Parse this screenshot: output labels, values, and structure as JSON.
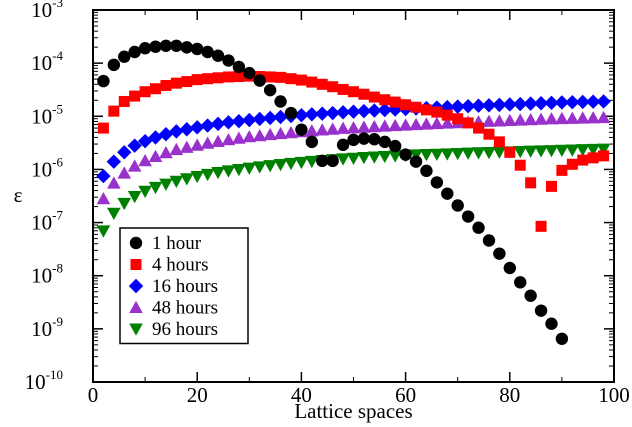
{
  "chart_data": {
    "type": "scatter",
    "xlabel": "Lattice spaces",
    "ylabel": "ε",
    "xlim": [
      0,
      100
    ],
    "ylim_log10": [
      -10,
      -3
    ],
    "y_scale": "log",
    "grid": false,
    "legend_placement": "bottom-left",
    "x_ticks": [
      0,
      20,
      40,
      60,
      80,
      100
    ],
    "x_tick_labels": [
      "0",
      "20",
      "40",
      "60",
      "80",
      "100"
    ],
    "y_ticks": [
      {
        "base": "10",
        "exp": "-10",
        "value_log10": -10
      },
      {
        "base": "10",
        "exp": "-9",
        "value_log10": -9
      },
      {
        "base": "10",
        "exp": "-8",
        "value_log10": -8
      },
      {
        "base": "10",
        "exp": "-7",
        "value_log10": -7
      },
      {
        "base": "10",
        "exp": "-6",
        "value_log10": -6
      },
      {
        "base": "10",
        "exp": "-5",
        "value_log10": -5
      },
      {
        "base": "10",
        "exp": "-4",
        "value_log10": -4
      },
      {
        "base": "10",
        "exp": "-3",
        "value_log10": -3
      }
    ],
    "series": [
      {
        "name": "1 hour",
        "marker": "circle",
        "color": "#000000",
        "points": [
          [
            2,
            4.6e-05
          ],
          [
            4,
            9.3e-05
          ],
          [
            6,
            0.000132
          ],
          [
            8,
            0.000162
          ],
          [
            10,
            0.000191
          ],
          [
            12,
            0.000204
          ],
          [
            14,
            0.000212
          ],
          [
            16,
            0.000212
          ],
          [
            18,
            0.000198
          ],
          [
            20,
            0.000185
          ],
          [
            22,
            0.000162
          ],
          [
            24,
            0.000138
          ],
          [
            26,
            0.000112
          ],
          [
            28,
            8.5e-05
          ],
          [
            30,
            6.5e-05
          ],
          [
            32,
            4.7e-05
          ],
          [
            34,
            3.1e-05
          ],
          [
            36,
            1.9e-05
          ],
          [
            38,
            1.15e-05
          ],
          [
            40,
            5.6e-06
          ],
          [
            42,
            3.3e-06
          ],
          [
            44,
            1.45e-06
          ],
          [
            46,
            1.45e-06
          ],
          [
            48,
            2.9e-06
          ],
          [
            50,
            3.6e-06
          ],
          [
            52,
            3.8e-06
          ],
          [
            54,
            3.7e-06
          ],
          [
            56,
            3.3e-06
          ],
          [
            58,
            2.75e-06
          ],
          [
            60,
            1.9e-06
          ],
          [
            62,
            1.4e-06
          ],
          [
            64,
            9.4e-07
          ],
          [
            66,
            5.7e-07
          ],
          [
            68,
            3.5e-07
          ],
          [
            70,
            2.1e-07
          ],
          [
            72,
            1.3e-07
          ],
          [
            74,
            8e-08
          ],
          [
            76,
            4.6e-08
          ],
          [
            78,
            2.6e-08
          ],
          [
            80,
            1.4e-08
          ],
          [
            82,
            7.5e-09
          ],
          [
            84,
            4.2e-09
          ],
          [
            86,
            2.2e-09
          ],
          [
            88,
            1.25e-09
          ],
          [
            90,
            6.5e-10
          ]
        ]
      },
      {
        "name": "4 hours",
        "marker": "square",
        "color": "#ff0000",
        "points": [
          [
            2,
            6e-06
          ],
          [
            4,
            1.25e-05
          ],
          [
            6,
            1.9e-05
          ],
          [
            8,
            2.4e-05
          ],
          [
            10,
            2.9e-05
          ],
          [
            12,
            3.3e-05
          ],
          [
            14,
            3.8e-05
          ],
          [
            16,
            4.2e-05
          ],
          [
            18,
            4.5e-05
          ],
          [
            20,
            4.9e-05
          ],
          [
            22,
            5.1e-05
          ],
          [
            24,
            5.3e-05
          ],
          [
            26,
            5.5e-05
          ],
          [
            28,
            5.6e-05
          ],
          [
            30,
            5.7e-05
          ],
          [
            32,
            5.6e-05
          ],
          [
            34,
            5.5e-05
          ],
          [
            36,
            5.4e-05
          ],
          [
            38,
            5.1e-05
          ],
          [
            40,
            4.8e-05
          ],
          [
            42,
            4.4e-05
          ],
          [
            44,
            4e-05
          ],
          [
            46,
            3.6e-05
          ],
          [
            48,
            3.2e-05
          ],
          [
            50,
            2.9e-05
          ],
          [
            52,
            2.6e-05
          ],
          [
            54,
            2.3e-05
          ],
          [
            56,
            2.05e-05
          ],
          [
            58,
            1.85e-05
          ],
          [
            60,
            1.65e-05
          ],
          [
            62,
            1.48e-05
          ],
          [
            64,
            1.32e-05
          ],
          [
            66,
            1.2e-05
          ],
          [
            68,
            1.05e-05
          ],
          [
            70,
            9e-06
          ],
          [
            72,
            7.5e-06
          ],
          [
            74,
            6e-06
          ],
          [
            76,
            4.6e-06
          ],
          [
            78,
            3.3e-06
          ],
          [
            80,
            2.1e-06
          ],
          [
            82,
            1.2e-06
          ],
          [
            84,
            5.6e-07
          ],
          [
            86,
            8.5e-08
          ],
          [
            88,
            4.8e-07
          ],
          [
            90,
            9.6e-07
          ],
          [
            92,
            1.25e-06
          ],
          [
            94,
            1.5e-06
          ],
          [
            96,
            1.65e-06
          ],
          [
            98,
            1.8e-06
          ]
        ]
      },
      {
        "name": "16 hours",
        "marker": "diamond",
        "color": "#0000ff",
        "points": [
          [
            2,
            7.5e-07
          ],
          [
            4,
            1.4e-06
          ],
          [
            6,
            2.1e-06
          ],
          [
            8,
            2.8e-06
          ],
          [
            10,
            3.4e-06
          ],
          [
            12,
            4e-06
          ],
          [
            14,
            4.6e-06
          ],
          [
            16,
            5.2e-06
          ],
          [
            18,
            5.7e-06
          ],
          [
            20,
            6.2e-06
          ],
          [
            22,
            6.7e-06
          ],
          [
            24,
            7.2e-06
          ],
          [
            26,
            7.7e-06
          ],
          [
            28,
            8.1e-06
          ],
          [
            30,
            8.5e-06
          ],
          [
            32,
            8.9e-06
          ],
          [
            34,
            9.3e-06
          ],
          [
            36,
            9.7e-06
          ],
          [
            38,
            1.01e-05
          ],
          [
            40,
            1.05e-05
          ],
          [
            42,
            1.09e-05
          ],
          [
            44,
            1.12e-05
          ],
          [
            46,
            1.15e-05
          ],
          [
            48,
            1.19e-05
          ],
          [
            50,
            1.22e-05
          ],
          [
            52,
            1.25e-05
          ],
          [
            54,
            1.28e-05
          ],
          [
            56,
            1.31e-05
          ],
          [
            58,
            1.34e-05
          ],
          [
            60,
            1.37e-05
          ],
          [
            62,
            1.4e-05
          ],
          [
            64,
            1.43e-05
          ],
          [
            66,
            1.46e-05
          ],
          [
            68,
            1.49e-05
          ],
          [
            70,
            1.52e-05
          ],
          [
            72,
            1.55e-05
          ],
          [
            74,
            1.58e-05
          ],
          [
            76,
            1.61e-05
          ],
          [
            78,
            1.64e-05
          ],
          [
            80,
            1.67e-05
          ],
          [
            82,
            1.7e-05
          ],
          [
            84,
            1.73e-05
          ],
          [
            86,
            1.76e-05
          ],
          [
            88,
            1.79e-05
          ],
          [
            90,
            1.82e-05
          ],
          [
            92,
            1.84e-05
          ],
          [
            94,
            1.86e-05
          ],
          [
            96,
            1.88e-05
          ],
          [
            98,
            1.9e-05
          ]
        ]
      },
      {
        "name": "48 hours",
        "marker": "triangle-up",
        "color": "#9932cc",
        "points": [
          [
            2,
            2.8e-07
          ],
          [
            4,
            5.5e-07
          ],
          [
            6,
            8.5e-07
          ],
          [
            8,
            1.15e-06
          ],
          [
            10,
            1.45e-06
          ],
          [
            12,
            1.75e-06
          ],
          [
            14,
            2.05e-06
          ],
          [
            16,
            2.35e-06
          ],
          [
            18,
            2.6e-06
          ],
          [
            20,
            2.85e-06
          ],
          [
            22,
            3.1e-06
          ],
          [
            24,
            3.35e-06
          ],
          [
            26,
            3.6e-06
          ],
          [
            28,
            3.85e-06
          ],
          [
            30,
            4.1e-06
          ],
          [
            32,
            4.3e-06
          ],
          [
            34,
            4.5e-06
          ],
          [
            36,
            4.7e-06
          ],
          [
            38,
            4.9e-06
          ],
          [
            40,
            5.1e-06
          ],
          [
            42,
            5.3e-06
          ],
          [
            44,
            5.5e-06
          ],
          [
            46,
            5.7e-06
          ],
          [
            48,
            5.9e-06
          ],
          [
            50,
            6.05e-06
          ],
          [
            52,
            6.2e-06
          ],
          [
            54,
            6.35e-06
          ],
          [
            56,
            6.5e-06
          ],
          [
            58,
            6.65e-06
          ],
          [
            60,
            6.8e-06
          ],
          [
            62,
            6.95e-06
          ],
          [
            64,
            7.1e-06
          ],
          [
            66,
            7.25e-06
          ],
          [
            68,
            7.4e-06
          ],
          [
            70,
            7.55e-06
          ],
          [
            72,
            7.7e-06
          ],
          [
            74,
            7.85e-06
          ],
          [
            76,
            8e-06
          ],
          [
            78,
            8.15e-06
          ],
          [
            80,
            8.3e-06
          ],
          [
            82,
            8.45e-06
          ],
          [
            84,
            8.6e-06
          ],
          [
            86,
            8.75e-06
          ],
          [
            88,
            8.9e-06
          ],
          [
            90,
            9e-06
          ],
          [
            92,
            9.1e-06
          ],
          [
            94,
            9.2e-06
          ],
          [
            96,
            9.3e-06
          ],
          [
            98,
            9.4e-06
          ]
        ]
      },
      {
        "name": "96 hours",
        "marker": "triangle-down",
        "color": "#008000",
        "points": [
          [
            2,
            7e-08
          ],
          [
            4,
            1.5e-07
          ],
          [
            6,
            2.3e-07
          ],
          [
            8,
            3.1e-07
          ],
          [
            10,
            3.9e-07
          ],
          [
            12,
            4.6e-07
          ],
          [
            14,
            5.3e-07
          ],
          [
            16,
            6e-07
          ],
          [
            18,
            6.7e-07
          ],
          [
            20,
            7.4e-07
          ],
          [
            22,
            8.1e-07
          ],
          [
            24,
            8.8e-07
          ],
          [
            26,
            9.4e-07
          ],
          [
            28,
            1e-06
          ],
          [
            30,
            1.06e-06
          ],
          [
            32,
            1.12e-06
          ],
          [
            34,
            1.18e-06
          ],
          [
            36,
            1.24e-06
          ],
          [
            38,
            1.3e-06
          ],
          [
            40,
            1.36e-06
          ],
          [
            42,
            1.42e-06
          ],
          [
            44,
            1.48e-06
          ],
          [
            46,
            1.53e-06
          ],
          [
            48,
            1.58e-06
          ],
          [
            50,
            1.63e-06
          ],
          [
            52,
            1.68e-06
          ],
          [
            54,
            1.72e-06
          ],
          [
            56,
            1.76e-06
          ],
          [
            58,
            1.8e-06
          ],
          [
            60,
            1.84e-06
          ],
          [
            62,
            1.88e-06
          ],
          [
            64,
            1.91e-06
          ],
          [
            66,
            1.94e-06
          ],
          [
            68,
            1.97e-06
          ],
          [
            70,
            2e-06
          ],
          [
            72,
            2.03e-06
          ],
          [
            74,
            2.06e-06
          ],
          [
            76,
            2.09e-06
          ],
          [
            78,
            2.12e-06
          ],
          [
            80,
            2.15e-06
          ],
          [
            82,
            2.18e-06
          ],
          [
            84,
            2.21e-06
          ],
          [
            86,
            2.24e-06
          ],
          [
            88,
            2.27e-06
          ],
          [
            90,
            2.3e-06
          ],
          [
            92,
            2.33e-06
          ],
          [
            94,
            2.36e-06
          ],
          [
            96,
            2.39e-06
          ],
          [
            98,
            2.42e-06
          ]
        ]
      }
    ]
  }
}
